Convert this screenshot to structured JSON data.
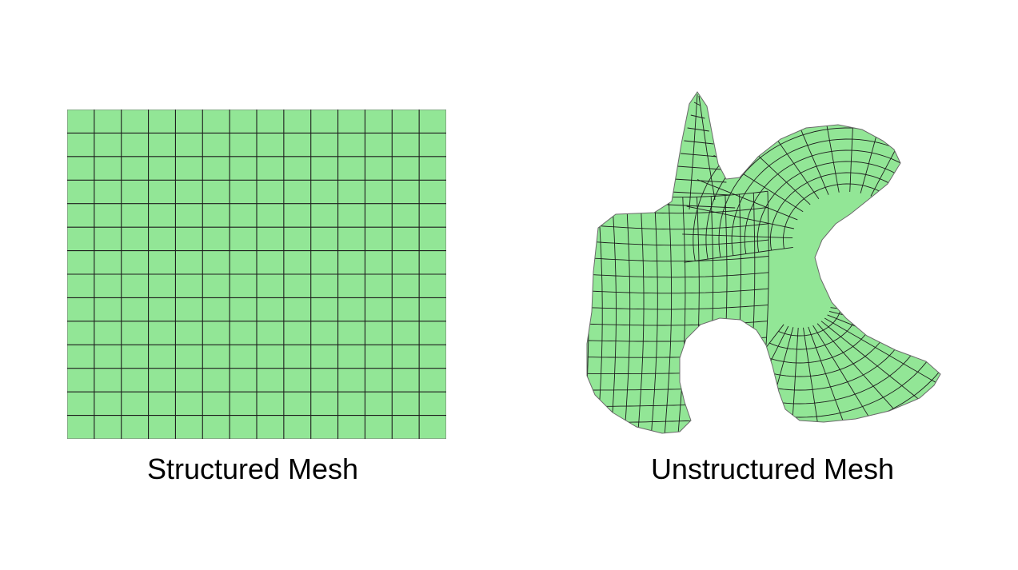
{
  "structured_mesh": {
    "caption": "Structured Mesh",
    "columns": 14,
    "rows": 14,
    "fill_color": "#92e696",
    "line_color": "#1d1d1d"
  },
  "unstructured_mesh": {
    "caption": "Unstructured Mesh",
    "fill_color": "#92e696",
    "line_color": "#1d1d1d"
  }
}
